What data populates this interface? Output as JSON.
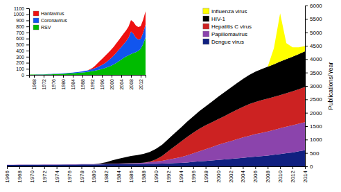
{
  "chart_data": [
    {
      "type": "area",
      "stacked": true,
      "y_label": "Publications/Year",
      "x": [
        1966,
        1967,
        1968,
        1969,
        1970,
        1971,
        1972,
        1973,
        1974,
        1975,
        1976,
        1977,
        1978,
        1979,
        1980,
        1981,
        1982,
        1983,
        1984,
        1985,
        1986,
        1987,
        1988,
        1989,
        1990,
        1991,
        1992,
        1993,
        1994,
        1995,
        1996,
        1997,
        1998,
        1999,
        2000,
        2001,
        2002,
        2003,
        2004,
        2005,
        2006,
        2007,
        2008,
        2009,
        2010,
        2011,
        2012,
        2013,
        2014
      ],
      "series": [
        {
          "name": "Dengue virus",
          "color": "#102080",
          "values": [
            50,
            52,
            54,
            55,
            56,
            57,
            58,
            59,
            60,
            62,
            64,
            65,
            68,
            70,
            72,
            74,
            76,
            78,
            80,
            82,
            85,
            88,
            92,
            96,
            100,
            105,
            110,
            120,
            130,
            145,
            165,
            185,
            200,
            220,
            240,
            260,
            280,
            300,
            320,
            340,
            360,
            380,
            400,
            430,
            460,
            490,
            520,
            560,
            600
          ]
        },
        {
          "name": "Papillomavirus",
          "color": "#8B44AC",
          "values": [
            8,
            8,
            8,
            9,
            9,
            9,
            10,
            10,
            10,
            10,
            11,
            12,
            13,
            14,
            15,
            16,
            18,
            20,
            22,
            25,
            30,
            35,
            45,
            60,
            80,
            105,
            140,
            175,
            215,
            265,
            320,
            380,
            440,
            500,
            560,
            610,
            660,
            710,
            760,
            800,
            840,
            870,
            900,
            930,
            960,
            990,
            1010,
            1030,
            1050
          ]
        },
        {
          "name": "Hepatitis C virus",
          "color": "#CC2222",
          "values": [
            0,
            0,
            0,
            0,
            0,
            0,
            0,
            0,
            0,
            0,
            0,
            0,
            0,
            0,
            0,
            0,
            0,
            0,
            0,
            0,
            0,
            0,
            0,
            20,
            80,
            180,
            320,
            450,
            570,
            680,
            770,
            840,
            890,
            920,
            960,
            1000,
            1050,
            1100,
            1140,
            1180,
            1200,
            1220,
            1230,
            1230,
            1240,
            1250,
            1270,
            1290,
            1310
          ]
        },
        {
          "name": "HIV-1",
          "color": "#000000",
          "values": [
            0,
            0,
            0,
            0,
            0,
            0,
            0,
            0,
            0,
            0,
            0,
            0,
            0,
            0,
            0,
            20,
            60,
            130,
            180,
            230,
            270,
            300,
            330,
            360,
            390,
            420,
            450,
            490,
            530,
            570,
            610,
            660,
            710,
            770,
            830,
            890,
            940,
            990,
            1040,
            1090,
            1130,
            1160,
            1190,
            1220,
            1250,
            1270,
            1290,
            1310,
            1330
          ]
        },
        {
          "name": "Influenza virus",
          "color": "#FFFF00",
          "values": [
            0,
            0,
            0,
            0,
            0,
            0,
            0,
            0,
            0,
            0,
            0,
            0,
            0,
            0,
            0,
            0,
            0,
            0,
            0,
            0,
            0,
            0,
            0,
            0,
            0,
            0,
            0,
            0,
            0,
            0,
            0,
            0,
            0,
            0,
            0,
            0,
            0,
            0,
            0,
            0,
            0,
            0,
            0,
            600,
            1800,
            600,
            350,
            250,
            200
          ]
        }
      ],
      "xlim": [
        1966,
        2014
      ],
      "xticks": [
        1966,
        1968,
        1970,
        1972,
        1974,
        1976,
        1978,
        1980,
        1982,
        1984,
        1986,
        1988,
        1990,
        1992,
        1994,
        1996,
        1998,
        2000,
        2002,
        2004,
        2006,
        2008,
        2010,
        2012,
        2014
      ],
      "ylim": [
        0,
        6000
      ],
      "yticks": [
        0,
        500,
        1000,
        1500,
        2000,
        2500,
        3000,
        3500,
        4000,
        4500,
        5000,
        5500,
        6000
      ],
      "legend": "upper center"
    },
    {
      "type": "area",
      "stacked": true,
      "x": [
        1966,
        1967,
        1968,
        1969,
        1970,
        1971,
        1972,
        1973,
        1974,
        1975,
        1976,
        1977,
        1978,
        1979,
        1980,
        1981,
        1982,
        1983,
        1984,
        1985,
        1986,
        1987,
        1988,
        1989,
        1990,
        1991,
        1992,
        1993,
        1994,
        1995,
        1996,
        1997,
        1998,
        1999,
        2000,
        2001,
        2002,
        2003,
        2004,
        2005,
        2006,
        2007,
        2008,
        2009,
        2010,
        2011,
        2012,
        2013,
        2014
      ],
      "series": [
        {
          "name": "RSV",
          "color": "#00BB00",
          "values": [
            5,
            5,
            5,
            6,
            6,
            7,
            7,
            8,
            9,
            10,
            11,
            12,
            14,
            16,
            18,
            20,
            22,
            24,
            27,
            30,
            33,
            36,
            40,
            44,
            49,
            55,
            62,
            70,
            78,
            87,
            97,
            108,
            122,
            138,
            155,
            175,
            200,
            225,
            252,
            280,
            305,
            325,
            345,
            360,
            375,
            395,
            430,
            510,
            620
          ]
        },
        {
          "name": "Coronavirus",
          "color": "#1155EE",
          "values": [
            2,
            2,
            2,
            3,
            3,
            3,
            3,
            4,
            4,
            4,
            5,
            5,
            6,
            6,
            7,
            8,
            9,
            10,
            11,
            12,
            14,
            16,
            18,
            21,
            24,
            28,
            33,
            39,
            46,
            55,
            65,
            78,
            93,
            110,
            128,
            148,
            170,
            190,
            210,
            230,
            250,
            290,
            370,
            320,
            240,
            190,
            165,
            185,
            210
          ]
        },
        {
          "name": "Hantavirus",
          "color": "#EE1111",
          "values": [
            0,
            0,
            0,
            0,
            0,
            0,
            0,
            0,
            0,
            0,
            0,
            0,
            0,
            0,
            0,
            0,
            0,
            0,
            0,
            0,
            0,
            0,
            0,
            0,
            0,
            8,
            18,
            35,
            58,
            82,
            100,
            115,
            125,
            133,
            140,
            147,
            155,
            162,
            168,
            174,
            180,
            185,
            190,
            195,
            200,
            205,
            210,
            215,
            220
          ]
        }
      ],
      "xlim": [
        1966,
        2014
      ],
      "xticks": [
        1968,
        1972,
        1976,
        1980,
        1984,
        1988,
        1992,
        1996,
        2000,
        2004,
        2008,
        2012
      ],
      "ylim": [
        0,
        1100
      ],
      "yticks": [
        0,
        100,
        200,
        300,
        400,
        500,
        600,
        700,
        800,
        900,
        1000,
        1100
      ],
      "legend": "upper left"
    }
  ]
}
